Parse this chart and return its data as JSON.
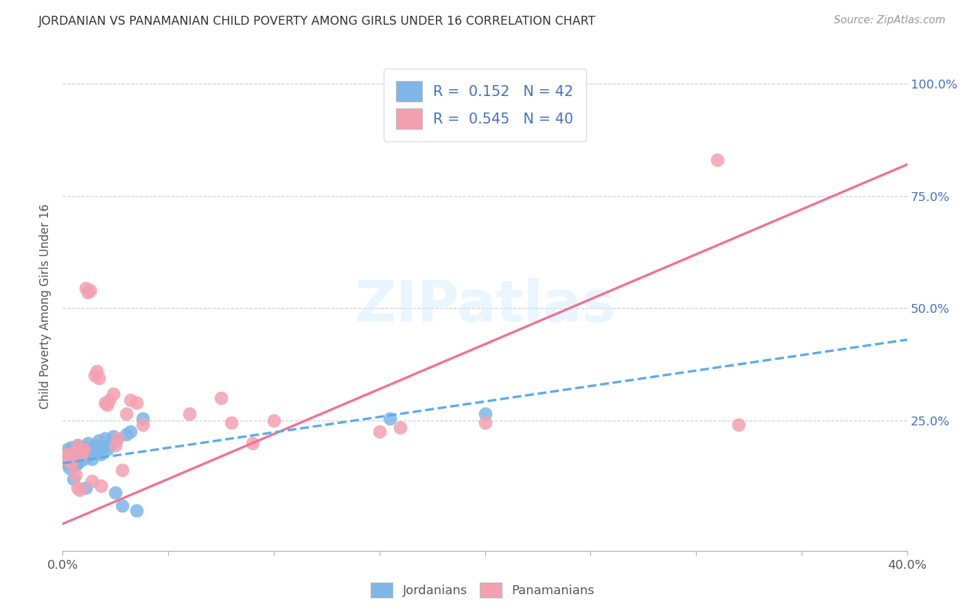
{
  "title": "JORDANIAN VS PANAMANIAN CHILD POVERTY AMONG GIRLS UNDER 16 CORRELATION CHART",
  "source": "Source: ZipAtlas.com",
  "ylabel": "Child Poverty Among Girls Under 16",
  "x_min": 0.0,
  "x_max": 0.4,
  "y_min": -0.04,
  "y_max": 1.05,
  "y_ticks_right": [
    0.25,
    0.5,
    0.75,
    1.0
  ],
  "y_tick_labels_right": [
    "25.0%",
    "50.0%",
    "75.0%",
    "100.0%"
  ],
  "jordanian_color": "#7EB6E8",
  "panamanian_color": "#F4A0B0",
  "trendline_jordan_color": "#5AABEF",
  "trendline_panama_color": "#F47090",
  "watermark": "ZIPatlas",
  "legend_R_jordan": "0.152",
  "legend_N_jordan": "42",
  "legend_R_panama": "0.545",
  "legend_N_panama": "40",
  "jordanians_label": "Jordanians",
  "panamanians_label": "Panamanians",
  "panama_trendline_x0": 0.0,
  "panama_trendline_y0": 0.02,
  "panama_trendline_x1": 0.4,
  "panama_trendline_y1": 0.82,
  "jordan_trendline_x0": 0.0,
  "jordan_trendline_y0": 0.155,
  "jordan_trendline_x1": 0.4,
  "jordan_trendline_y1": 0.43,
  "jordan_x": [
    0.001,
    0.002,
    0.002,
    0.003,
    0.003,
    0.004,
    0.004,
    0.005,
    0.005,
    0.006,
    0.006,
    0.007,
    0.007,
    0.008,
    0.008,
    0.009,
    0.01,
    0.01,
    0.011,
    0.012,
    0.012,
    0.013,
    0.014,
    0.015,
    0.016,
    0.017,
    0.018,
    0.019,
    0.02,
    0.021,
    0.022,
    0.023,
    0.024,
    0.025,
    0.025,
    0.028,
    0.03,
    0.032,
    0.035,
    0.038,
    0.155,
    0.2
  ],
  "jordan_y": [
    0.175,
    0.185,
    0.155,
    0.165,
    0.145,
    0.19,
    0.16,
    0.12,
    0.17,
    0.15,
    0.18,
    0.155,
    0.195,
    0.16,
    0.185,
    0.175,
    0.165,
    0.19,
    0.1,
    0.2,
    0.17,
    0.175,
    0.165,
    0.195,
    0.18,
    0.205,
    0.175,
    0.19,
    0.21,
    0.185,
    0.195,
    0.2,
    0.215,
    0.205,
    0.09,
    0.06,
    0.22,
    0.225,
    0.05,
    0.255,
    0.255,
    0.265
  ],
  "panama_x": [
    0.001,
    0.002,
    0.003,
    0.004,
    0.005,
    0.006,
    0.007,
    0.007,
    0.008,
    0.009,
    0.01,
    0.011,
    0.012,
    0.013,
    0.014,
    0.015,
    0.016,
    0.017,
    0.018,
    0.02,
    0.021,
    0.022,
    0.024,
    0.025,
    0.026,
    0.028,
    0.03,
    0.032,
    0.035,
    0.038,
    0.06,
    0.075,
    0.08,
    0.09,
    0.1,
    0.15,
    0.16,
    0.2,
    0.31,
    0.32
  ],
  "panama_y": [
    0.17,
    0.175,
    0.16,
    0.155,
    0.18,
    0.13,
    0.195,
    0.1,
    0.095,
    0.175,
    0.185,
    0.545,
    0.535,
    0.54,
    0.115,
    0.35,
    0.36,
    0.345,
    0.105,
    0.29,
    0.285,
    0.295,
    0.31,
    0.195,
    0.21,
    0.14,
    0.265,
    0.295,
    0.29,
    0.24,
    0.265,
    0.3,
    0.245,
    0.2,
    0.25,
    0.225,
    0.235,
    0.245,
    0.83,
    0.24
  ]
}
